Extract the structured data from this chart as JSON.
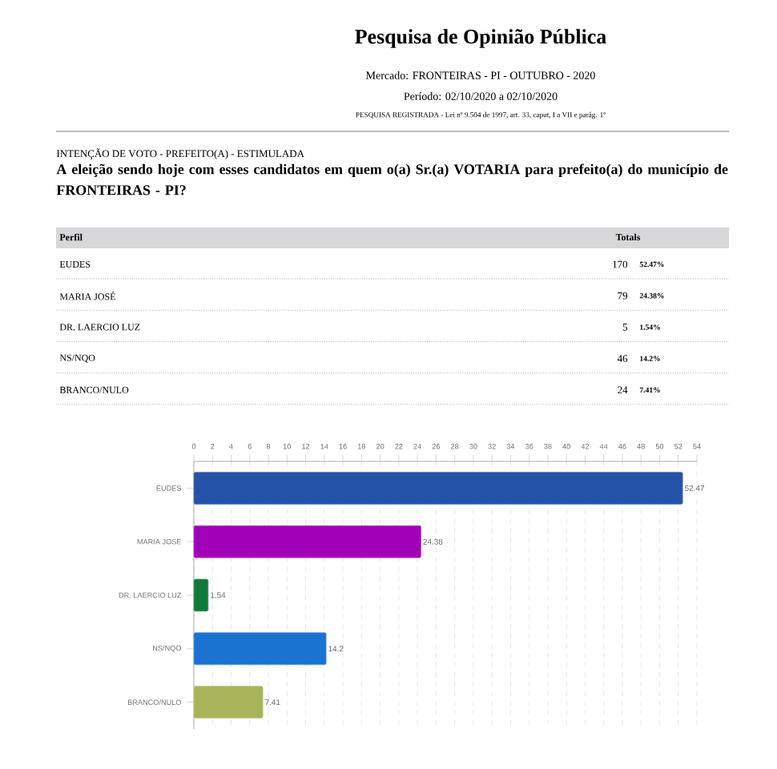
{
  "chart_data": [
    {
      "type": "other",
      "title": "Pesquisa de Opinião Pública",
      "subtitle": "Mercado: FRONTEIRAS - PI - OUTUBRO - 2020",
      "annotations": [
        "Período: 02/10/2020 a 02/10/2020",
        "PESQUISA REGISTRADA - Lei nº 9.504 de 1997, art. 33, caput, I a VII e parág. 1º",
        "INTENÇÃO DE VOTO - PREFEITO(A) - ESTIMULADA",
        "A eleição sendo hoje com esses candidatos em quem o(a) Sr.(a) VOTARIA para prefeito(a) do município de FRONTEIRAS - PI?",
        "Perfil",
        "Totals",
        "170",
        "79",
        "5",
        "46",
        "24"
      ],
      "categories": [
        "EUDES",
        "MARIA JOSÉ",
        "DR. LAERCIO LUZ",
        "NS/NQO",
        "BRANCO/NULO"
      ],
      "values": [
        52.47,
        24.38,
        1.54,
        14.2,
        7.41
      ],
      "value_labels": [
        "52.47%",
        "24.38%",
        "1.54%",
        "14.2%",
        "7.41%"
      ]
    },
    {
      "type": "bar",
      "orientation": "horizontal",
      "categories": [
        "EUDES",
        "MARIA JOSE",
        "DR. LAERCIO LUZ",
        "NS/NQO",
        "BRANCO/NULO"
      ],
      "values": [
        52.47,
        24.38,
        1.54,
        14.2,
        7.41
      ],
      "colors": [
        "#2352a8",
        "#a100b8",
        "#0f7a3a",
        "#1a73d0",
        "#a8b45a"
      ],
      "xlim": [
        0,
        54
      ],
      "xticks": [
        0,
        2,
        4,
        6,
        8,
        10,
        12,
        14,
        16,
        18,
        20,
        22,
        24,
        26,
        28,
        30,
        32,
        34,
        36,
        38,
        40,
        42,
        44,
        46,
        48,
        50,
        52,
        54
      ],
      "data_labels": true,
      "grid": "x"
    }
  ]
}
